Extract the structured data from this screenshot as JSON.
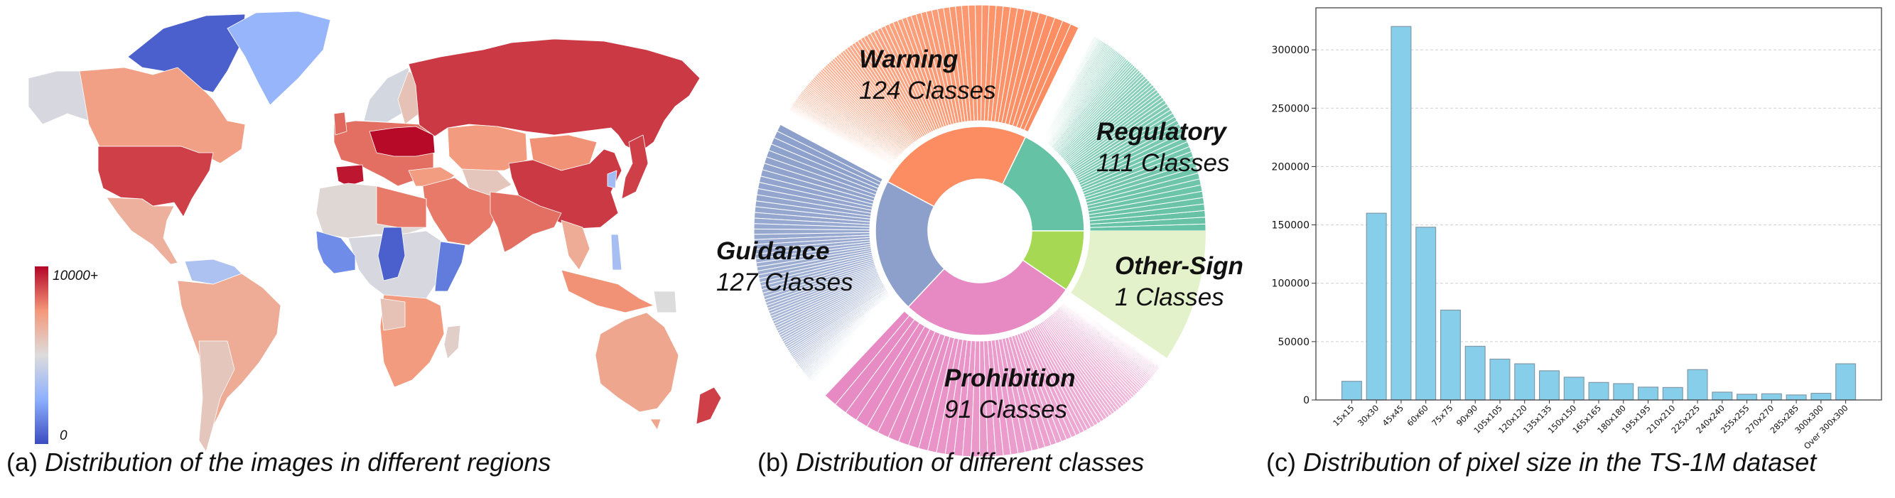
{
  "captions": {
    "a_prefix": "(a) ",
    "a_text": "Distribution of the images in different regions",
    "b_prefix": "(b) ",
    "b_text": "Distribution of different classes",
    "c_prefix": "(c) ",
    "c_text": "Distribution of pixel size in the TS-1M dataset"
  },
  "map": {
    "colorbar_max_label": "10000+",
    "colorbar_min_label": "0",
    "colormap": [
      "#3b4cc0",
      "#8db0fe",
      "#dddcdc",
      "#f4987a",
      "#b40426"
    ],
    "region_levels": {
      "arctic": 0.05,
      "greenland": 0.28,
      "alaska": 0.48,
      "canada": 0.72,
      "usa": 0.9,
      "mexico": 0.66,
      "sa_north": 0.35,
      "south_america": 0.68,
      "southern_cone": 0.58,
      "scandinavia": 0.47,
      "finland": 0.6,
      "europe": 0.82,
      "central_europe": 0.99,
      "spain": 0.97,
      "uk": 0.83,
      "russia": 0.91,
      "kazakhstan": 0.74,
      "mongolia": 0.76,
      "central_asia": 0.58,
      "china": 0.91,
      "japan": 0.9,
      "korea": 0.32,
      "middle_east": 0.8,
      "turkey": 0.73,
      "india": 0.82,
      "se_asia": 0.68,
      "indonesia": 0.76,
      "png": 0.5,
      "philippines": 0.33,
      "australia": 0.7,
      "tasmania": 0.7,
      "new_zealand": 0.9,
      "north_africa": 0.52,
      "libya_egypt": 0.8,
      "west_africa": 0.16,
      "central_africa": 0.48,
      "chad": 0.05,
      "horn": 0.12,
      "southern_africa": 0.74,
      "angola": 0.6,
      "madagascar": 0.55
    }
  },
  "chart_data": [
    {
      "type": "pie",
      "title": "Distribution of different classes",
      "categories": [
        {
          "name": "Regulatory",
          "count_label": "111 Classes",
          "classes": 111,
          "share": 0.178,
          "color": "#66c2a5",
          "outer_color": "#66c2a5"
        },
        {
          "name": "Warning",
          "count_label": "124 Classes",
          "classes": 124,
          "share": 0.244,
          "color": "#fc8d62",
          "outer_color": "#fc8d62"
        },
        {
          "name": "Guidance",
          "count_label": "127 Classes",
          "classes": 127,
          "share": 0.208,
          "color": "#8da0cb",
          "outer_color": "#8da0cb"
        },
        {
          "name": "Prohibition",
          "count_label": "91 Classes",
          "classes": 91,
          "share": 0.275,
          "color": "#e78ac3",
          "outer_color": "#e78ac3"
        },
        {
          "name": "Other-Sign",
          "count_label": "1 Classes",
          "classes": 1,
          "share": 0.095,
          "color": "#a6d854",
          "outer_color": "#e4f2cc"
        }
      ]
    },
    {
      "type": "bar",
      "title": "Distribution of pixel size in the TS-1M dataset",
      "xlabel": "",
      "ylabel": "",
      "categories": [
        "15x15",
        "30x30",
        "45x45",
        "60x60",
        "75x75",
        "90x90",
        "105x105",
        "120x120",
        "135x135",
        "150x150",
        "165x165",
        "180x180",
        "195x195",
        "210x210",
        "225x225",
        "240x240",
        "255x255",
        "270x270",
        "285x285",
        "300x300",
        "Over 300x300"
      ],
      "values": [
        16000,
        160000,
        320000,
        148000,
        77000,
        46000,
        35000,
        31000,
        25000,
        19500,
        15000,
        14000,
        11000,
        10700,
        26000,
        6700,
        4900,
        5300,
        4300,
        5700,
        31000
      ],
      "yticks": [
        "0",
        "50000",
        "100000",
        "150000",
        "200000",
        "250000",
        "300000"
      ],
      "ytick_values": [
        0,
        50000,
        100000,
        150000,
        200000,
        250000,
        300000
      ],
      "ylim": [
        0,
        336000
      ],
      "grid": true,
      "bar_color": "#87ceeb",
      "edge_color": "#7f9aa8"
    }
  ]
}
